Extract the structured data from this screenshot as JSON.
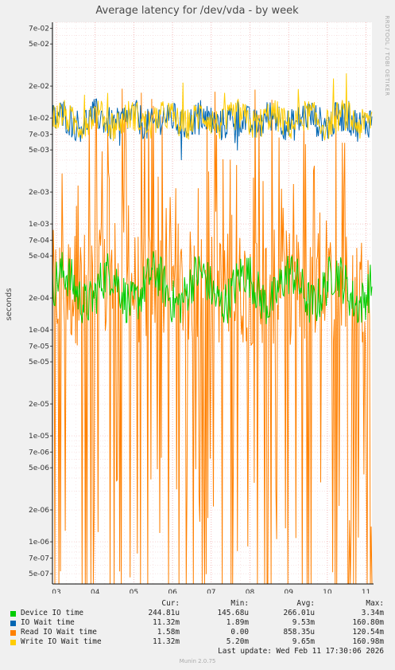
{
  "chart_data": {
    "type": "line",
    "title": "Average latency for /dev/vda - by week",
    "ylabel": "seconds",
    "yscale": "log",
    "ylim": [
      4e-07,
      0.08
    ],
    "x_ticks": [
      "03",
      "04",
      "05",
      "06",
      "07",
      "08",
      "09",
      "10",
      "11"
    ],
    "y_ticks": [
      {
        "label": "7e-02",
        "value": 0.07
      },
      {
        "label": "5e-02",
        "value": 0.05
      },
      {
        "label": "2e-02",
        "value": 0.02
      },
      {
        "label": "1e-02",
        "value": 0.01
      },
      {
        "label": "7e-03",
        "value": 0.007
      },
      {
        "label": "5e-03",
        "value": 0.005
      },
      {
        "label": "2e-03",
        "value": 0.002
      },
      {
        "label": "1e-03",
        "value": 0.001
      },
      {
        "label": "7e-04",
        "value": 0.0007
      },
      {
        "label": "5e-04",
        "value": 0.0005
      },
      {
        "label": "2e-04",
        "value": 0.0002
      },
      {
        "label": "1e-04",
        "value": 0.0001
      },
      {
        "label": "7e-05",
        "value": 7e-05
      },
      {
        "label": "5e-05",
        "value": 5e-05
      },
      {
        "label": "2e-05",
        "value": 2e-05
      },
      {
        "label": "1e-05",
        "value": 1e-05
      },
      {
        "label": "7e-06",
        "value": 7e-06
      },
      {
        "label": "5e-06",
        "value": 5e-06
      },
      {
        "label": "2e-06",
        "value": 2e-06
      },
      {
        "label": "1e-06",
        "value": 1e-06
      },
      {
        "label": "7e-07",
        "value": 7e-07
      },
      {
        "label": "5e-07",
        "value": 5e-07
      }
    ],
    "grid": true,
    "series": [
      {
        "name": "Device IO time",
        "color": "#00cc00",
        "base": 0.000245,
        "spread": 0.22,
        "dip_prob": 0.0,
        "dip": 0.0
      },
      {
        "name": "IO Wait time",
        "color": "#0066b3",
        "base": 0.0095,
        "spread": 0.16,
        "dip_prob": 0.015,
        "dip": 0.62
      },
      {
        "name": "Read IO Wait time",
        "color": "#ff8000",
        "base": 0.00025,
        "spread": 0.55,
        "dip_prob": 0.0,
        "dip": 0.0
      },
      {
        "name": "Write IO Wait time",
        "color": "#ffcc00",
        "base": 0.0096,
        "spread": 0.15,
        "dip_prob": 0.0,
        "dip": 0.0
      }
    ]
  },
  "watermark": "RRDTOOL / TOBI OETIKER",
  "legend": {
    "headers": {
      "cur": "Cur:",
      "min": "Min:",
      "avg": "Avg:",
      "max": "Max:"
    },
    "rows": [
      {
        "name": "Device IO time",
        "color": "#00cc00",
        "cur": "244.81u",
        "min": "145.68u",
        "avg": "266.01u",
        "max": "3.34m"
      },
      {
        "name": "IO Wait time",
        "color": "#0066b3",
        "cur": "11.32m",
        "min": "1.89m",
        "avg": "9.53m",
        "max": "160.80m"
      },
      {
        "name": "Read IO Wait time",
        "color": "#ff8000",
        "cur": "1.58m",
        "min": "0.00",
        "avg": "858.35u",
        "max": "120.54m"
      },
      {
        "name": "Write IO Wait time",
        "color": "#ffcc00",
        "cur": "11.32m",
        "min": "5.20m",
        "avg": "9.65m",
        "max": "160.98m"
      }
    ]
  },
  "last_update": "Last update: Wed Feb 11 17:30:06 2026",
  "generator": "Munin 2.0.75"
}
